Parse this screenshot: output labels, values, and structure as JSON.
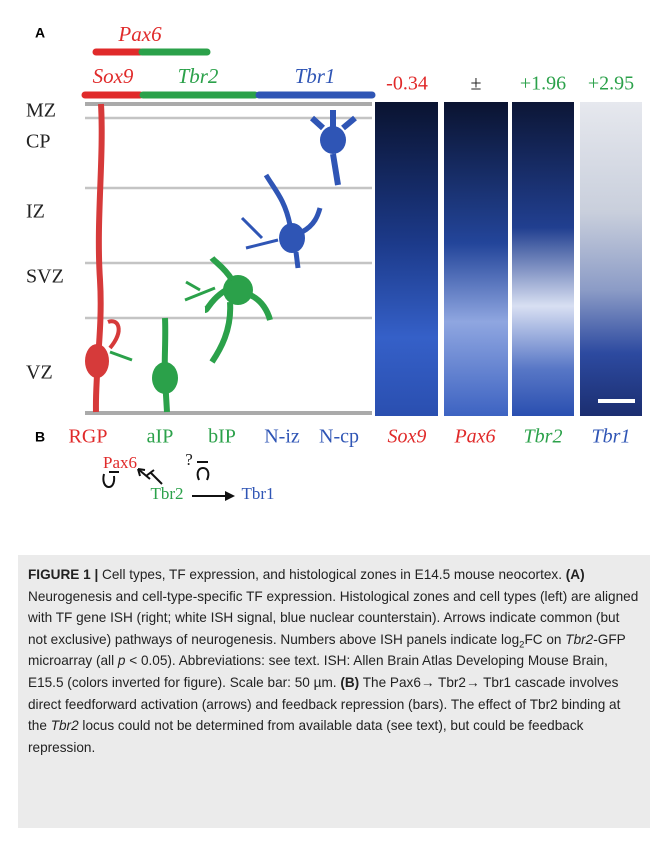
{
  "panel_a": {
    "label": "A",
    "pax6_bar_label": "Pax6",
    "tf_labels": [
      "Sox9",
      "Tbr2",
      "Tbr1"
    ],
    "zones": [
      "MZ",
      "CP",
      "IZ",
      "SVZ",
      "VZ"
    ],
    "log2fc_labels": [
      "-0.34",
      "±",
      "+1.96",
      "+2.95"
    ]
  },
  "panel_b_row": {
    "label": "B",
    "cell_types": [
      "RGP",
      "aIP",
      "bIP",
      "N-iz",
      "N-cp"
    ],
    "genes": [
      "Sox9",
      "Pax6",
      "Tbr2",
      "Tbr1"
    ]
  },
  "cascade": {
    "nodes": [
      "Pax6",
      "Tbr2",
      "Tbr1"
    ],
    "unknown": "?"
  },
  "caption": [
    "FIGURE 1 |",
    " Cell types, TF expression, and histological zones in E14.5 mouse neocortex. ",
    "(A)",
    " Neurogenesis and cell-type-specific TF expression. Histological zones and cell types (left) are aligned with TF gene ISH (right; white ISH signal, blue nuclear counterstain). Arrows indicate common (but not exclusive) pathways of neurogenesis. Numbers above ISH panels indicate log",
    "2",
    "FC on ",
    "Tbr2",
    "-GFP microarray (all ",
    "p",
    " < 0.05). Abbreviations: see text. ISH: Allen Brain Atlas Developing Mouse Brain, E15.5 (colors inverted for figure). Scale bar: 50 µm. ",
    "(B)",
    " The Pax6→ Tbr2→ Tbr1 cascade involves direct feedforward activation (arrows) and feedback repression (bars). The effect of Tbr2 binding at the ",
    "Tbr2",
    " locus could not be determined from available data (see text), but could be feedback repression."
  ]
}
